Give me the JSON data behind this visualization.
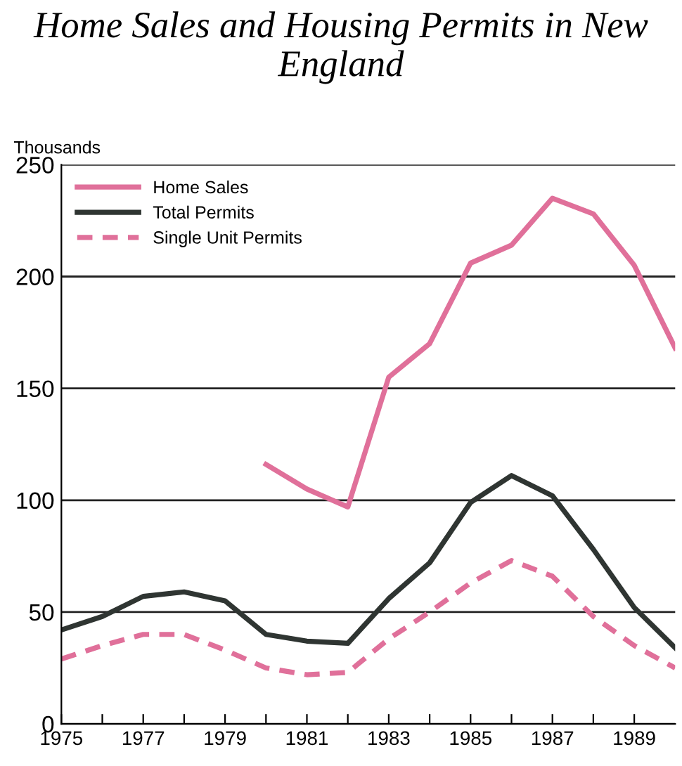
{
  "chart_data": {
    "type": "line",
    "title": "Home Sales and Housing Permits in New England",
    "ylabel": "Thousands",
    "x": [
      1975,
      1976,
      1977,
      1978,
      1979,
      1980,
      1981,
      1982,
      1983,
      1984,
      1985,
      1986,
      1987,
      1988,
      1989,
      1990
    ],
    "series": [
      {
        "name": "Home Sales",
        "color": "#e0709a",
        "line_style": "solid",
        "values": [
          null,
          null,
          null,
          null,
          null,
          116,
          105,
          97,
          155,
          170,
          206,
          214,
          235,
          228,
          205,
          168
        ]
      },
      {
        "name": "Total Permits",
        "color": "#2f3532",
        "line_style": "solid",
        "values": [
          42,
          48,
          57,
          59,
          55,
          40,
          37,
          36,
          56,
          72,
          99,
          111,
          102,
          78,
          52,
          34
        ]
      },
      {
        "name": "Single Unit Permits",
        "color": "#e0709a",
        "line_style": "dashed",
        "values": [
          29,
          35,
          40,
          40,
          33,
          25,
          22,
          23,
          38,
          50,
          63,
          73,
          66,
          48,
          35,
          25
        ]
      }
    ],
    "xlim": [
      1975,
      1990
    ],
    "xticks": [
      1975,
      {
        "value": 1976,
        "label": null
      },
      1977,
      {
        "value": 1978,
        "label": null
      },
      1979,
      {
        "value": 1980,
        "label": null
      },
      1981,
      {
        "value": 1982,
        "label": null
      },
      1983,
      {
        "value": 1984,
        "label": null
      },
      1985,
      {
        "value": 1986,
        "label": null
      },
      1987,
      {
        "value": 1988,
        "label": null
      },
      1989
    ],
    "ylim": [
      0,
      250
    ],
    "yticks": [
      0,
      50,
      100,
      150,
      200,
      250
    ],
    "grid": "y",
    "legend": "top left",
    "marker": "none"
  }
}
